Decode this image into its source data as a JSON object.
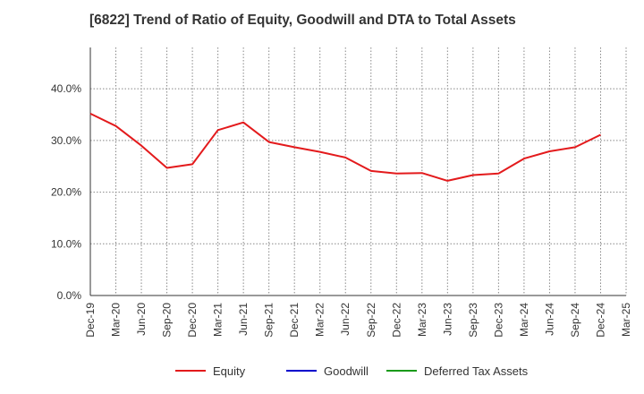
{
  "chart_data": {
    "type": "line",
    "title": "[6822]  Trend of Ratio of Equity, Goodwill and DTA to Total Assets",
    "xlabel": "",
    "ylabel": "",
    "ylim": [
      0,
      48
    ],
    "yticks": [
      0,
      10,
      20,
      30,
      40
    ],
    "ytick_labels": [
      "0.0%",
      "10.0%",
      "20.0%",
      "30.0%",
      "40.0%"
    ],
    "tick_labels": [
      "Dec-19",
      "Mar-20",
      "Jun-20",
      "Sep-20",
      "Dec-20",
      "Mar-21",
      "Jun-21",
      "Sep-21",
      "Dec-21",
      "Mar-22",
      "Jun-22",
      "Sep-22",
      "Dec-22",
      "Mar-23",
      "Jun-23",
      "Sep-23",
      "Dec-23",
      "Mar-24",
      "Jun-24",
      "Sep-24",
      "Dec-24",
      "Mar-25"
    ],
    "grid": true,
    "legend_position": "bottom",
    "series": [
      {
        "name": "Equity",
        "color": "#e31a1c",
        "values": [
          35.2,
          32.8,
          29.0,
          24.7,
          25.4,
          32.0,
          33.5,
          29.7,
          28.7,
          27.8,
          26.7,
          24.1,
          23.6,
          23.7,
          22.2,
          23.3,
          23.6,
          26.5,
          27.9,
          28.7,
          31.1,
          null
        ]
      },
      {
        "name": "Goodwill",
        "color": "#0000cc",
        "values": []
      },
      {
        "name": "Deferred Tax Assets",
        "color": "#1a9a1a",
        "values": []
      }
    ]
  }
}
